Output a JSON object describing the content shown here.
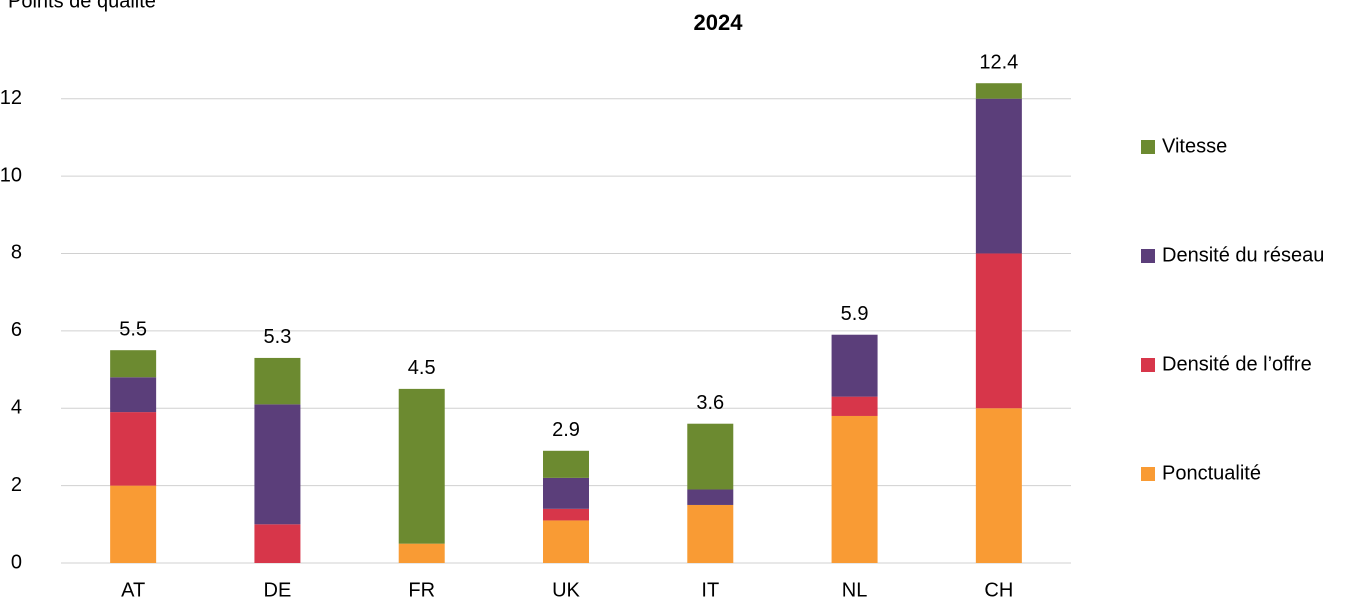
{
  "chart_data": {
    "type": "stacked_bar",
    "title": "2024",
    "y_label": "Points de qualité",
    "categories": [
      "AT",
      "DE",
      "FR",
      "UK",
      "IT",
      "NL",
      "CH"
    ],
    "series": [
      {
        "name": "Ponctualité",
        "color": "#f99b34",
        "values": [
          2.0,
          0,
          0.5,
          1.1,
          1.5,
          3.8,
          4.0
        ]
      },
      {
        "name": "Densité de l’offre",
        "color": "#d7364a",
        "values": [
          1.9,
          1.0,
          0,
          0.3,
          0,
          0.5,
          4.0
        ]
      },
      {
        "name": "Densité du réseau",
        "color": "#5b3e7a",
        "values": [
          0.9,
          3.1,
          0,
          0.8,
          0.4,
          1.6,
          4.0
        ]
      },
      {
        "name": "Vitesse",
        "color": "#6c8a30",
        "values": [
          0.7,
          1.2,
          4.0,
          0.7,
          1.7,
          0,
          0.4
        ]
      }
    ],
    "totals": [
      5.5,
      5.3,
      4.5,
      2.9,
      3.6,
      5.9,
      12.4
    ],
    "ylim": [
      0,
      13
    ],
    "yticks": [
      0,
      2,
      4,
      6,
      8,
      10,
      12
    ],
    "grid": true,
    "legend": "right"
  }
}
